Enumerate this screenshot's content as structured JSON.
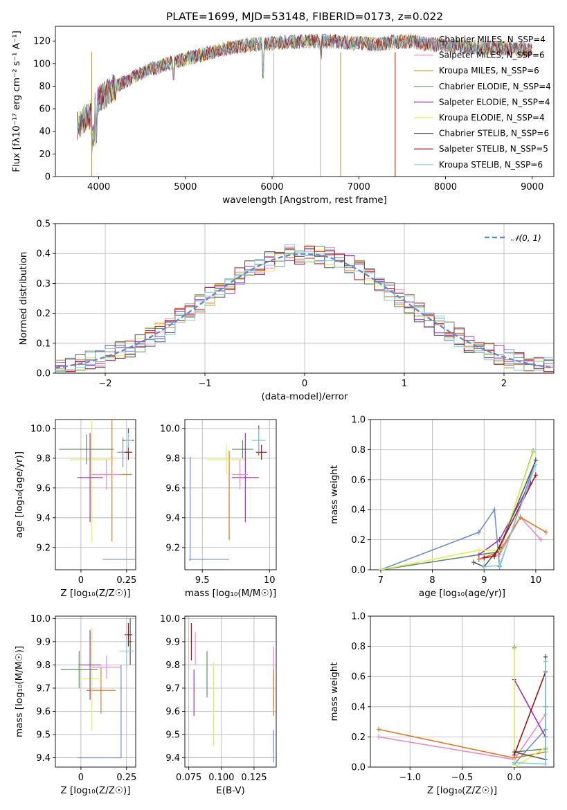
{
  "chart_data": [
    {
      "id": "spectrum",
      "type": "line",
      "title": "PLATE=1699, MJD=53148, FIBERID=0173, z=0.022",
      "xlabel": "wavelength [Angstrom, rest frame]",
      "ylabel": "Flux [fλ10⁻¹⁷ erg cm⁻² s⁻¹ A⁻¹]",
      "xlim": [
        3500,
        9250
      ],
      "ylim": [
        0,
        133
      ],
      "xticks": [
        4000,
        5000,
        6000,
        7000,
        8000,
        9000
      ],
      "yticks": [
        0,
        20,
        40,
        60,
        80,
        100,
        120
      ],
      "legend_position": "right",
      "series": [
        {
          "name": "Chabrier MILES, N_SSP=4",
          "color": "#6a8fd4"
        },
        {
          "name": "Salpeter MILES, N_SSP=6",
          "color": "#f088c8"
        },
        {
          "name": "Kroupa MILES, N_SSP=6",
          "color": "#b8961e"
        },
        {
          "name": "Chabrier ELODIE, N_SSP=4",
          "color": "#5f8f5f"
        },
        {
          "name": "Salpeter ELODIE, N_SSP=4",
          "color": "#9b30b8"
        },
        {
          "name": "Kroupa ELODIE, N_SSP=4",
          "color": "#e0f050"
        },
        {
          "name": "Chabrier STELIB, N_SSP=6",
          "color": "#555555"
        },
        {
          "name": "Salpeter STELIB, N_SSP=5",
          "color": "#b00e0e"
        },
        {
          "name": "Kroupa STELIB, N_SSP=6",
          "color": "#80d0e0"
        }
      ],
      "continuum": {
        "x": [
          3750,
          3900,
          4000,
          4200,
          4400,
          4600,
          4800,
          5000,
          5200,
          5400,
          5600,
          5800,
          6000,
          6200,
          6400,
          6600,
          6800,
          7000,
          7200,
          7400,
          7600,
          7800,
          8000,
          8200,
          8400,
          8600,
          8800,
          9000
        ],
        "y": [
          45,
          55,
          68,
          80,
          88,
          95,
          100,
          104,
          108,
          112,
          115,
          117,
          118,
          119,
          120,
          120,
          119,
          118,
          117,
          119,
          120,
          117,
          116,
          115,
          114,
          114,
          113,
          112
        ]
      },
      "spikes": [
        {
          "x": 3920,
          "ymin": 0,
          "color": "#b8961e"
        },
        {
          "x": 6020,
          "ymin": 0,
          "color": "#aaaaaa"
        },
        {
          "x": 6560,
          "ymin": 0,
          "color": "#aaaaaa"
        },
        {
          "x": 6790,
          "ymin": 0,
          "color": "#a0a020"
        },
        {
          "x": 7420,
          "ymin": 0,
          "color": "#b00e0e"
        }
      ]
    },
    {
      "id": "residuals",
      "type": "histogram",
      "xlabel": "(data-model)/error",
      "ylabel": "Normed distribution",
      "xlim": [
        -2.5,
        2.5
      ],
      "ylim": [
        0,
        0.5
      ],
      "xticks": [
        -2,
        -1,
        0,
        1,
        2
      ],
      "yticks": [
        0.0,
        0.1,
        0.2,
        0.3,
        0.4,
        0.5
      ],
      "legend": "𝒩(0, 1)",
      "legend_position": "upper right",
      "bin_width": 0.1,
      "reference_color": "#5b8ad6"
    },
    {
      "id": "age-Z",
      "type": "scatter",
      "xlabel": "Z [log₁₀(Z/Z☉)]",
      "ylabel": "age  [log₁₀(age/yr)]",
      "xlim": [
        -0.14,
        0.3
      ],
      "ylim": [
        9.05,
        10.06
      ],
      "xticks": [
        0.0,
        0.25
      ],
      "yticks": [
        9.2,
        9.4,
        9.6,
        9.8,
        10.0
      ],
      "points": [
        {
          "x": 0.22,
          "y": 9.12,
          "xerr": 0.1,
          "yerr": 0.0,
          "color": "#6a8fd4"
        },
        {
          "x": 0.23,
          "y": 9.84,
          "xerr": 0.03,
          "yerr": 0.1,
          "color": "#6a8fd4"
        },
        {
          "x": 0.17,
          "y": 9.69,
          "xerr": 0.11,
          "yerr": 0.45,
          "color": "#e07820"
        },
        {
          "x": 0.06,
          "y": 9.79,
          "xerr": 0.12,
          "yerr": 0.55,
          "color": "#e0f050"
        },
        {
          "x": 0.03,
          "y": 9.86,
          "xerr": 0.15,
          "yerr": 0.1,
          "color": "#5f8f5f"
        },
        {
          "x": 0.05,
          "y": 9.67,
          "xerr": 0.07,
          "yerr": 0.3,
          "color": "#9b30b8"
        },
        {
          "x": 0.14,
          "y": 9.69,
          "xerr": 0.08,
          "yerr": 0.1,
          "color": "#f088c8"
        },
        {
          "x": 0.26,
          "y": 9.84,
          "xerr": 0.02,
          "yerr": 0.05,
          "color": "#b00e0e"
        },
        {
          "x": 0.26,
          "y": 9.92,
          "xerr": 0.03,
          "yerr": 0.08,
          "color": "#555555"
        },
        {
          "x": 0.26,
          "y": 9.92,
          "xerr": 0.02,
          "yerr": 0.05,
          "color": "#80d0e0"
        }
      ]
    },
    {
      "id": "age-mass",
      "type": "scatter",
      "xlabel": "mass [log₁₀(M/M☉)]",
      "ylabel": "",
      "xlim": [
        9.37,
        10.05
      ],
      "ylim": [
        9.05,
        10.06
      ],
      "xticks": [
        9.5,
        10.0
      ],
      "yticks": [
        9.2,
        9.4,
        9.6,
        9.8,
        10.0
      ],
      "points": [
        {
          "x": 9.55,
          "y": 9.12,
          "xerr": 0.15,
          "yerr": 0.0,
          "color": "#6a8fd4"
        },
        {
          "x": 9.41,
          "y": 9.46,
          "xerr": 0.0,
          "yerr": 0.35,
          "color": "#6a8fd4"
        },
        {
          "x": 9.7,
          "y": 9.55,
          "xerr": 0.0,
          "yerr": 0.3,
          "color": "#e07820"
        },
        {
          "x": 9.68,
          "y": 9.79,
          "xerr": 0.15,
          "yerr": 0.1,
          "color": "#e0f050"
        },
        {
          "x": 9.8,
          "y": 9.86,
          "xerr": 0.08,
          "yerr": 0.06,
          "color": "#5f8f5f"
        },
        {
          "x": 9.82,
          "y": 9.67,
          "xerr": 0.1,
          "yerr": 0.3,
          "color": "#9b30b8"
        },
        {
          "x": 9.78,
          "y": 9.69,
          "xerr": 0.06,
          "yerr": 0.1,
          "color": "#f088c8"
        },
        {
          "x": 9.94,
          "y": 9.84,
          "xerr": 0.04,
          "yerr": 0.05,
          "color": "#b00e0e"
        },
        {
          "x": 9.92,
          "y": 9.92,
          "xerr": 0.05,
          "yerr": 0.1,
          "color": "#555555"
        },
        {
          "x": 9.92,
          "y": 9.92,
          "xerr": 0.05,
          "yerr": 0.08,
          "color": "#80d0e0"
        }
      ]
    },
    {
      "id": "weight-age",
      "type": "line",
      "xlabel": "age  [log₁₀(age/yr)]",
      "ylabel": "mass weight",
      "xlim": [
        6.8,
        10.35
      ],
      "ylim": [
        0,
        1
      ],
      "xticks": [
        7,
        8,
        9,
        10
      ],
      "yticks": [
        0.0,
        0.2,
        0.4,
        0.6,
        0.8,
        1.0
      ],
      "series": [
        {
          "name": "Chabrier MILES",
          "color": "#6a8fd4",
          "x": [
            7.0,
            8.9,
            9.2,
            9.3,
            10.0
          ],
          "y": [
            0.0,
            0.25,
            0.4,
            0.02,
            0.73
          ]
        },
        {
          "name": "Salpeter MILES",
          "color": "#f088c8",
          "x": [
            8.9,
            9.3,
            9.7,
            10.1
          ],
          "y": [
            0.07,
            0.1,
            0.35,
            0.2
          ]
        },
        {
          "name": "Kroupa MILES",
          "color": "#e07820",
          "x": [
            8.9,
            9.3,
            9.7,
            10.2
          ],
          "y": [
            0.07,
            0.12,
            0.35,
            0.25
          ]
        },
        {
          "name": "Chabrier ELODIE",
          "color": "#5f8f5f",
          "x": [
            7.0,
            8.9,
            9.3,
            9.95
          ],
          "y": [
            0.0,
            0.1,
            0.12,
            0.79
          ]
        },
        {
          "name": "Salpeter ELODIE",
          "color": "#9b30b8",
          "x": [
            8.9,
            9.3,
            9.9
          ],
          "y": [
            0.1,
            0.2,
            0.58
          ]
        },
        {
          "name": "Kroupa ELODIE",
          "color": "#e0f050",
          "x": [
            7.0,
            8.9,
            9.3,
            9.95
          ],
          "y": [
            0.0,
            0.13,
            0.13,
            0.78
          ]
        },
        {
          "name": "Chabrier STELIB",
          "color": "#555555",
          "x": [
            8.8,
            9.0,
            9.3,
            10.0
          ],
          "y": [
            0.05,
            0.02,
            0.15,
            0.73
          ]
        },
        {
          "name": "Salpeter STELIB",
          "color": "#b00e0e",
          "x": [
            9.0,
            9.2,
            10.0
          ],
          "y": [
            0.08,
            0.09,
            0.63
          ]
        },
        {
          "name": "Kroupa STELIB",
          "color": "#80d0e0",
          "x": [
            9.0,
            9.3,
            10.0
          ],
          "y": [
            0.02,
            0.03,
            0.7
          ]
        }
      ]
    },
    {
      "id": "mass-Z",
      "type": "scatter",
      "xlabel": "Z [log₁₀(Z/Z☉)]",
      "ylabel": "mass [log₁₀(M/M☉)]",
      "xlim": [
        -0.14,
        0.3
      ],
      "ylim": [
        9.36,
        10.01
      ],
      "xticks": [
        0.0,
        0.25
      ],
      "yticks": [
        9.4,
        9.5,
        9.6,
        9.7,
        9.8,
        9.9,
        10.0
      ],
      "points": [
        {
          "x": 0.1,
          "y": 9.4,
          "xerr": 0.12,
          "yerr": 0.0,
          "color": "#6a8fd4"
        },
        {
          "x": 0.22,
          "y": 9.6,
          "xerr": 0.0,
          "yerr": 0.2,
          "color": "#6a8fd4"
        },
        {
          "x": 0.11,
          "y": 9.69,
          "xerr": 0.08,
          "yerr": 0.1,
          "color": "#e07820"
        },
        {
          "x": 0.06,
          "y": 9.74,
          "xerr": 0.05,
          "yerr": 0.22,
          "color": "#e0f050"
        },
        {
          "x": -0.01,
          "y": 9.78,
          "xerr": 0.1,
          "yerr": 0.08,
          "color": "#5f8f5f"
        },
        {
          "x": 0.05,
          "y": 9.8,
          "xerr": 0.06,
          "yerr": 0.15,
          "color": "#9b30b8"
        },
        {
          "x": 0.14,
          "y": 9.79,
          "xerr": 0.08,
          "yerr": 0.05,
          "color": "#f088c8"
        },
        {
          "x": 0.26,
          "y": 9.93,
          "xerr": 0.02,
          "yerr": 0.05,
          "color": "#b00e0e"
        },
        {
          "x": 0.27,
          "y": 9.9,
          "xerr": 0.01,
          "yerr": 0.1,
          "color": "#555555"
        },
        {
          "x": 0.25,
          "y": 9.86,
          "xerr": 0.04,
          "yerr": 0.08,
          "color": "#80d0e0"
        }
      ]
    },
    {
      "id": "mass-EBV",
      "type": "scatter",
      "xlabel": "E(B-V)",
      "ylabel": "",
      "xlim": [
        0.072,
        0.142
      ],
      "ylim": [
        9.36,
        10.01
      ],
      "xticks": [
        0.075,
        0.1,
        0.125
      ],
      "xtick_labels": [
        "0.075",
        "0.100",
        "0.125"
      ],
      "yticks": [
        9.4,
        9.5,
        9.6,
        9.7,
        9.8,
        9.9,
        10.0
      ],
      "points": [
        {
          "x": 0.077,
          "y": 9.9,
          "xerr": 0.0,
          "yerr": 0.08,
          "color": "#b00e0e"
        },
        {
          "x": 0.079,
          "y": 9.68,
          "xerr": 0.0,
          "yerr": 0.1,
          "color": "#9b30b8"
        },
        {
          "x": 0.08,
          "y": 9.87,
          "xerr": 0.0,
          "yerr": 0.07,
          "color": "#f088c8"
        },
        {
          "x": 0.089,
          "y": 9.76,
          "xerr": 0.0,
          "yerr": 0.1,
          "color": "#5f8f5f"
        },
        {
          "x": 0.094,
          "y": 9.63,
          "xerr": 0.0,
          "yerr": 0.18,
          "color": "#e0f050"
        },
        {
          "x": 0.14,
          "y": 9.75,
          "xerr": 0.0,
          "yerr": 0.13,
          "color": "#f088c8"
        },
        {
          "x": 0.14,
          "y": 9.68,
          "xerr": 0.0,
          "yerr": 0.1,
          "color": "#e07820"
        },
        {
          "x": 0.14,
          "y": 9.45,
          "xerr": 0.0,
          "yerr": 0.07,
          "color": "#6a8fd4"
        }
      ]
    },
    {
      "id": "weight-Z",
      "type": "line",
      "xlabel": "Z [log₁₀(Z/Z☉)]",
      "ylabel": "mass weight",
      "xlim": [
        -1.38,
        0.38
      ],
      "ylim": [
        0,
        1
      ],
      "xticks": [
        -1.0,
        -0.5,
        0.0
      ],
      "xtick_labels": [
        "−1.0",
        "−0.5",
        "0.0"
      ],
      "yticks": [
        0.0,
        0.2,
        0.4,
        0.6,
        0.8,
        1.0
      ],
      "series": [
        {
          "name": "Chabrier MILES",
          "color": "#6a8fd4",
          "x": [
            0.0,
            0.3,
            0.3
          ],
          "y": [
            0.02,
            0.25,
            0.4
          ]
        },
        {
          "name": "Salpeter MILES",
          "color": "#f088c8",
          "x": [
            -1.3,
            0.0,
            0.3
          ],
          "y": [
            0.2,
            0.05,
            0.35
          ]
        },
        {
          "name": "Kroupa MILES",
          "color": "#e07820",
          "x": [
            -1.3,
            0.0,
            0.3
          ],
          "y": [
            0.25,
            0.06,
            0.1
          ]
        },
        {
          "name": "Chabrier ELODIE",
          "color": "#5f8f5f",
          "x": [
            0.0,
            0.0,
            0.3
          ],
          "y": [
            0.79,
            0.1,
            0.12
          ]
        },
        {
          "name": "Salpeter ELODIE",
          "color": "#9b30b8",
          "x": [
            0.0,
            0.3
          ],
          "y": [
            0.58,
            0.2
          ]
        },
        {
          "name": "Kroupa ELODIE",
          "color": "#e0f050",
          "x": [
            0.0,
            0.0,
            0.3
          ],
          "y": [
            0.78,
            0.0,
            0.13
          ]
        },
        {
          "name": "Chabrier STELIB",
          "color": "#555555",
          "x": [
            0.0,
            0.3,
            0.3
          ],
          "y": [
            0.1,
            0.05,
            0.73
          ]
        },
        {
          "name": "Salpeter STELIB",
          "color": "#b00e0e",
          "x": [
            0.0,
            0.3
          ],
          "y": [
            0.08,
            0.63
          ]
        },
        {
          "name": "Kroupa STELIB",
          "color": "#80d0e0",
          "x": [
            0.0,
            0.3,
            0.3
          ],
          "y": [
            0.03,
            0.02,
            0.7
          ]
        }
      ]
    }
  ]
}
